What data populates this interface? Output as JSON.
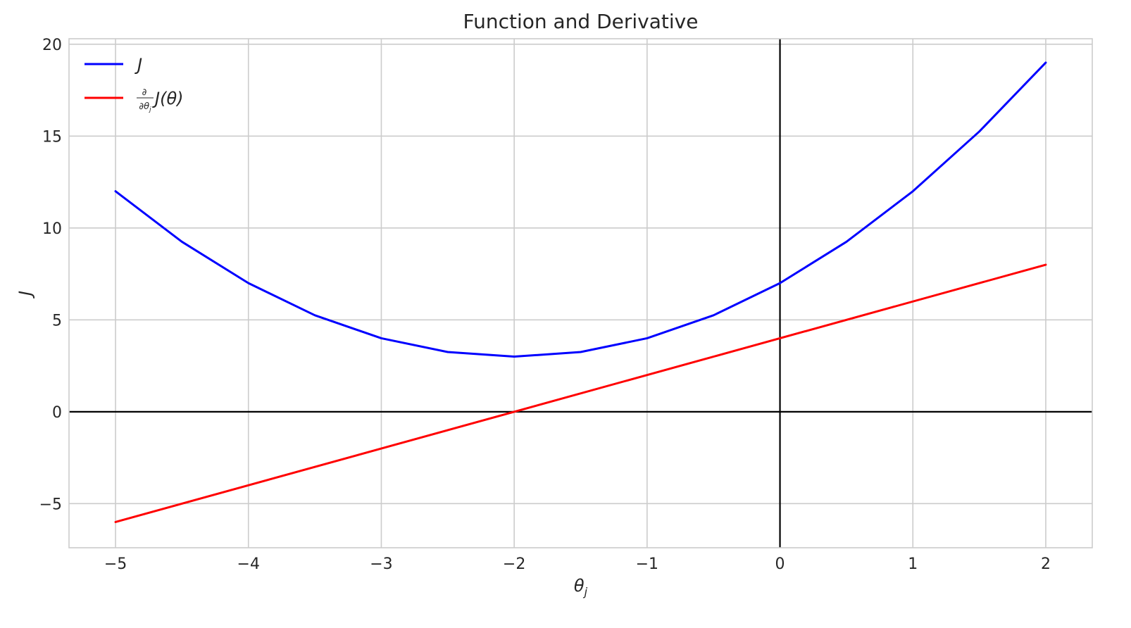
{
  "chart_data": {
    "type": "line",
    "title": "Function and Derivative",
    "xlabel": "θ",
    "xlabel_subscript": "j",
    "ylabel": "J",
    "xlim": [
      -5.35,
      2.35
    ],
    "ylim": [
      -7.4,
      20.3
    ],
    "xticks": [
      -5,
      -4,
      -3,
      -2,
      -1,
      0,
      1,
      2
    ],
    "xtick_labels": [
      "−5",
      "−4",
      "−3",
      "−2",
      "−1",
      "0",
      "1",
      "2"
    ],
    "yticks": [
      -5,
      0,
      5,
      10,
      15,
      20
    ],
    "ytick_labels": [
      "−5",
      "0",
      "5",
      "10",
      "15",
      "20"
    ],
    "grid": true,
    "reference_lines": {
      "horizontal_y": 0,
      "vertical_x": 0,
      "color": "#000000"
    },
    "legend_position": "top-left",
    "series": [
      {
        "name": "J",
        "color": "#0000ff",
        "x": [
          -5,
          -4.5,
          -4,
          -3.5,
          -3,
          -2.5,
          -2,
          -1.5,
          -1,
          -0.5,
          0,
          0.5,
          1,
          1.5,
          2
        ],
        "y": [
          12,
          9.25,
          7,
          5.25,
          4,
          3.25,
          3,
          3.25,
          4,
          5.25,
          7,
          9.25,
          12,
          15.25,
          19
        ]
      },
      {
        "name": "∂/∂θj J(θ)",
        "legend_frac_num": "∂",
        "legend_frac_den": "∂θ",
        "legend_frac_sub": "j",
        "legend_rest": "J(θ)",
        "color": "#ff0000",
        "x": [
          -5,
          2
        ],
        "y": [
          -6,
          8
        ]
      }
    ]
  }
}
